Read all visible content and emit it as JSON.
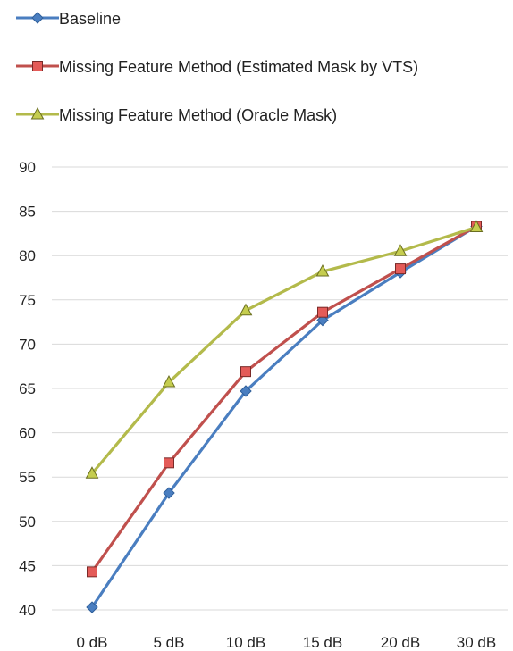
{
  "chart_data": {
    "type": "line",
    "title": "",
    "xlabel": "",
    "ylabel": "",
    "categories": [
      "0 dB",
      "5 dB",
      "10 dB",
      "15 dB",
      "20 dB",
      "30 dB"
    ],
    "ylim": [
      40,
      90
    ],
    "yticks": [
      40,
      45,
      50,
      55,
      60,
      65,
      70,
      75,
      80,
      85,
      90
    ],
    "grid": true,
    "legend_position": "top-left",
    "series": [
      {
        "name": "Baseline",
        "marker": "diamond",
        "color": "#4a7ec0",
        "marker_color": "#4a7ec0",
        "values": [
          40.3,
          53.2,
          64.7,
          72.7,
          78.1,
          83.3
        ]
      },
      {
        "name": "Missing Feature Method (Estimated Mask by VTS)",
        "marker": "square",
        "color": "#c0504d",
        "marker_color": "#e45b58",
        "values": [
          44.3,
          56.6,
          66.9,
          73.6,
          78.5,
          83.3
        ]
      },
      {
        "name": "Missing Feature Method (Oracle Mask)",
        "marker": "triangle",
        "color": "#b3ba4b",
        "marker_color": "#c5cd4f",
        "values": [
          55.4,
          65.7,
          73.8,
          78.2,
          80.5,
          83.2
        ]
      }
    ]
  }
}
